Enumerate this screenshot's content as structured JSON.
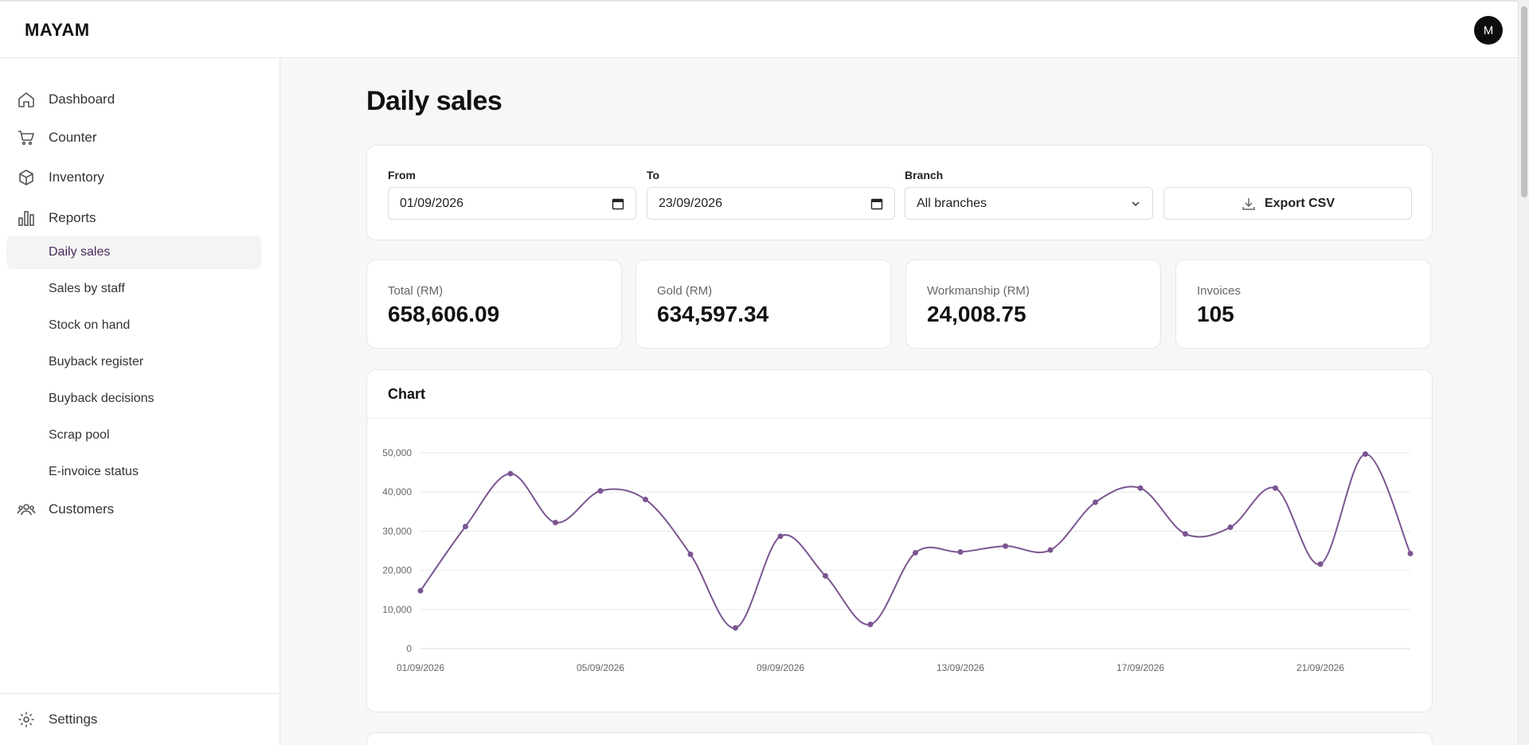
{
  "app": {
    "brand": "MAYAM",
    "avatar_initial": "M"
  },
  "sidebar": {
    "items": [
      {
        "label": "Dashboard",
        "icon": "home-icon"
      },
      {
        "label": "Counter",
        "icon": "cart-icon"
      },
      {
        "label": "Inventory",
        "icon": "box-icon"
      },
      {
        "label": "Reports",
        "icon": "bar-chart-icon"
      }
    ],
    "report_items": [
      {
        "label": "Daily sales",
        "active": true
      },
      {
        "label": "Sales by staff"
      },
      {
        "label": "Stock on hand"
      },
      {
        "label": "Buyback register"
      },
      {
        "label": "Buyback decisions"
      },
      {
        "label": "Scrap pool"
      },
      {
        "label": "E-invoice status"
      }
    ],
    "customers": {
      "label": "Customers",
      "icon": "users-icon"
    },
    "settings": {
      "label": "Settings",
      "icon": "gear-icon"
    }
  },
  "page": {
    "title": "Daily sales"
  },
  "filters": {
    "from_label": "From",
    "from_value": "01/09/2026",
    "to_label": "To",
    "to_value": "23/09/2026",
    "branch_label": "Branch",
    "branch_value": "All branches",
    "export_label": "Export CSV"
  },
  "stats": [
    {
      "label": "Total (RM)",
      "value": "658,606.09"
    },
    {
      "label": "Gold (RM)",
      "value": "634,597.34"
    },
    {
      "label": "Workmanship (RM)",
      "value": "24,008.75"
    },
    {
      "label": "Invoices",
      "value": "105"
    }
  ],
  "chart_card": {
    "title": "Chart"
  },
  "chart_data": {
    "type": "line",
    "title": "",
    "x": [
      "01/09/2026",
      "02/09/2026",
      "03/09/2026",
      "04/09/2026",
      "05/09/2026",
      "06/09/2026",
      "07/09/2026",
      "08/09/2026",
      "09/09/2026",
      "10/09/2026",
      "11/09/2026",
      "12/09/2026",
      "13/09/2026",
      "14/09/2026",
      "15/09/2026",
      "16/09/2026",
      "17/09/2026",
      "18/09/2026",
      "19/09/2026",
      "20/09/2026",
      "21/09/2026",
      "22/09/2026",
      "23/09/2026"
    ],
    "x_tick_labels": [
      "01/09/2026",
      "05/09/2026",
      "09/09/2026",
      "13/09/2026",
      "17/09/2026",
      "21/09/2026"
    ],
    "x_tick_indices": [
      0,
      4,
      8,
      12,
      16,
      20
    ],
    "y_ticks": [
      0,
      10000,
      20000,
      30000,
      40000,
      50000
    ],
    "y_tick_labels": [
      "0",
      "10,000",
      "20,000",
      "30,000",
      "40,000",
      "50,000"
    ],
    "ylim": [
      0,
      50000
    ],
    "grid": true,
    "color": "#7b5591",
    "series": [
      {
        "values": [
          14800,
          31200,
          44700,
          32200,
          40300,
          38100,
          24100,
          5300,
          28700,
          18600,
          6200,
          24500,
          24700,
          26200,
          25200,
          37400,
          41000,
          29300,
          31000,
          41000,
          21600,
          49700,
          24300
        ]
      }
    ]
  }
}
